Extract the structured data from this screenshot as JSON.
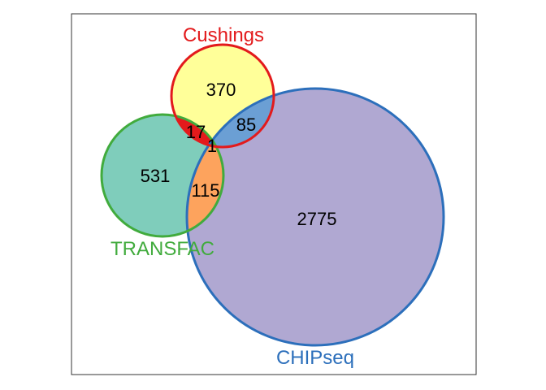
{
  "venn": {
    "sets": [
      {
        "id": "cushings",
        "label": "Cushings",
        "size": 473,
        "fill": "#ffff99",
        "stroke": "#e31a1c"
      },
      {
        "id": "transfac",
        "label": "TRANSFAC",
        "size": 664,
        "fill": "#7fcdbb",
        "stroke": "#41ab3d"
      },
      {
        "id": "chipseq",
        "label": "CHIPseq",
        "size": 2976,
        "fill": "#b0a8d2",
        "stroke": "#2c6fbb"
      }
    ],
    "regions": {
      "cushings_only": {
        "value": "370",
        "fill": "#ffff99"
      },
      "transfac_only": {
        "value": "531",
        "fill": "#7fcdbb"
      },
      "chipseq_only": {
        "value": "2775",
        "fill": "#b0a8d2"
      },
      "cushings_transfac": {
        "value": "17",
        "fill": "#e31a1c"
      },
      "cushings_chipseq": {
        "value": "85",
        "fill": "#6b9fd4"
      },
      "transfac_chipseq": {
        "value": "115",
        "fill": "#fda35d"
      },
      "all_three": {
        "value": "1",
        "fill": "#8e6a3a"
      }
    }
  }
}
